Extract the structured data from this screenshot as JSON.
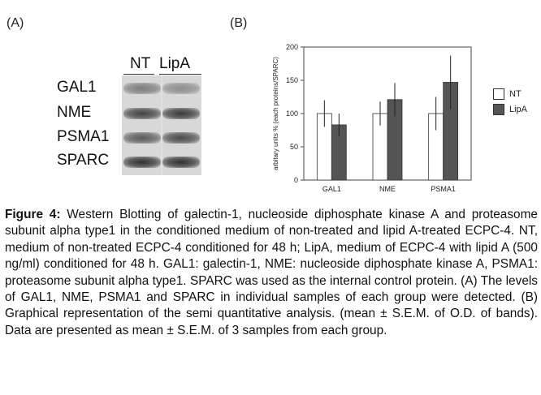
{
  "panels": {
    "a_label": "(A)",
    "b_label": "(B)"
  },
  "blot": {
    "lane_headers": [
      "NT",
      "LipA"
    ],
    "proteins": [
      "GAL1",
      "NME",
      "PSMA1",
      "SPARC"
    ]
  },
  "chart_data": {
    "type": "bar",
    "categories": [
      "GAL1",
      "NME",
      "PSMA1"
    ],
    "series": [
      {
        "name": "NT",
        "values": [
          100,
          100,
          100
        ],
        "errors": [
          20,
          18,
          25
        ],
        "color": "#ffffff"
      },
      {
        "name": "LipA",
        "values": [
          83,
          121,
          147
        ],
        "errors": [
          17,
          25,
          40
        ],
        "color": "#555555"
      }
    ],
    "ylabel": "arbitary units % (each proteins/SPARC)",
    "ylim": [
      0,
      200
    ],
    "yticks": [
      0,
      50,
      100,
      150,
      200
    ],
    "grid": false,
    "legend_position": "right"
  },
  "caption": {
    "label": "Figure 4:",
    "text": " Western Blotting of galectin-1, nucleoside diphosphate kinase A and proteasome subunit alpha type1 in the conditioned medium of non-treated and lipid A-treated ECPC-4. NT, medium of non-treated ECPC-4 conditioned for 48 h; LipA, medium of ECPC-4 with lipid A (500 ng/ml) conditioned for 48 h. GAL1: galectin-1, NME: nucleoside diphosphate kinase A, PSMA1: proteasome subunit alpha type1. SPARC was used as the internal control protein. (A) The levels of GAL1, NME, PSMA1 and SPARC in individual samples of each group were detected. (B) Graphical representation of the semi quantitative analysis. (mean ± S.E.M. of O.D. of bands). Data are presented as mean ± S.E.M. of 3 samples from each group."
  }
}
